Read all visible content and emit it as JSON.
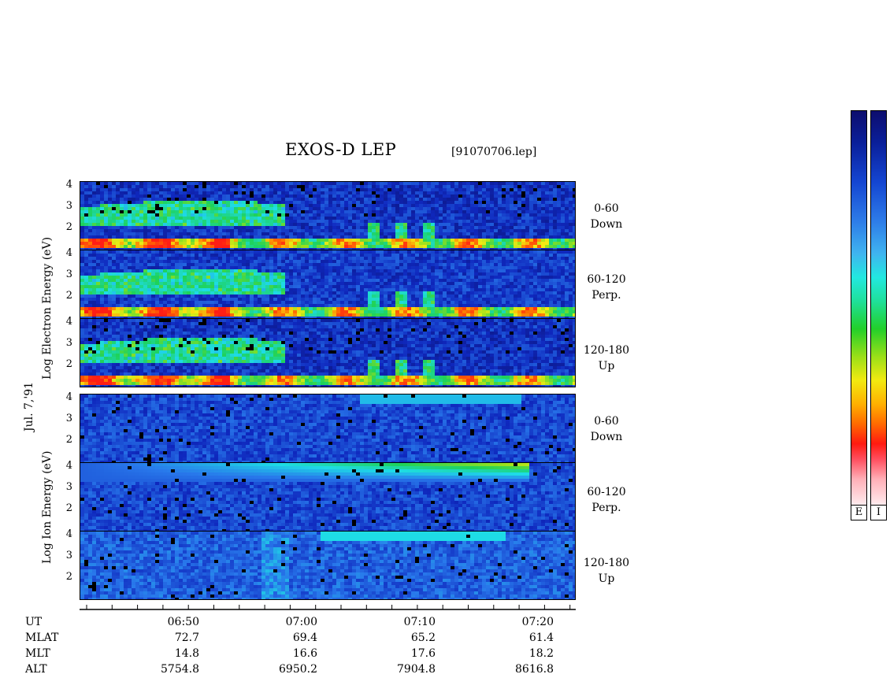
{
  "title": "EXOS-D LEP",
  "file_label": "[91070706.lep]",
  "date_label": "Jul. 7,'91",
  "electron_ylabel": "Log Electron Energy (eV)",
  "ion_ylabel": "Log Ion Energy (eV)",
  "panels": [
    {
      "species": "electron",
      "pitch": "0-60",
      "dir": "Down"
    },
    {
      "species": "electron",
      "pitch": "60-120",
      "dir": "Perp."
    },
    {
      "species": "electron",
      "pitch": "120-180",
      "dir": "Up"
    },
    {
      "species": "ion",
      "pitch": "0-60",
      "dir": "Down"
    },
    {
      "species": "ion",
      "pitch": "60-120",
      "dir": "Perp."
    },
    {
      "species": "ion",
      "pitch": "120-180",
      "dir": "Up"
    }
  ],
  "ytick_labels": [
    "4",
    "3",
    "2"
  ],
  "colorbar": {
    "labels": [
      "E",
      "I"
    ],
    "colors": [
      "#0d0d6e",
      "#1446d2",
      "#22e8e0",
      "#22d02a",
      "#f2ea10",
      "#ff6a00",
      "#ff1a10",
      "#fff0f2"
    ]
  },
  "info_rows": [
    {
      "name": "UT",
      "values": [
        "06:50",
        "07:00",
        "07:10",
        "07:20"
      ]
    },
    {
      "name": "MLAT",
      "values": [
        "72.7",
        "69.4",
        "65.2",
        "61.4"
      ]
    },
    {
      "name": "MLT",
      "values": [
        "14.8",
        "16.6",
        "17.6",
        "18.2"
      ]
    },
    {
      "name": "ALT",
      "values": [
        "5754.8",
        "6950.2",
        "7904.8",
        "8616.8"
      ]
    }
  ],
  "chart_data": {
    "type": "heatmap",
    "title": "EXOS-D LEP",
    "x": [
      "06:50",
      "07:00",
      "07:10",
      "07:20"
    ],
    "ylabel_electron": "Log Electron Energy (eV)",
    "ylabel_ion": "Log Ion Energy (eV)",
    "y_ticks": [
      2,
      3,
      4
    ],
    "ylim": [
      1.1,
      4.2
    ],
    "series": [
      {
        "name": "0-60 Down",
        "species": "electron"
      },
      {
        "name": "60-120 Perp.",
        "species": "electron"
      },
      {
        "name": "120-180 Up",
        "species": "electron"
      },
      {
        "name": "0-60 Down",
        "species": "ion"
      },
      {
        "name": "60-120 Perp.",
        "species": "ion"
      },
      {
        "name": "120-180 Up",
        "species": "ion"
      }
    ]
  }
}
